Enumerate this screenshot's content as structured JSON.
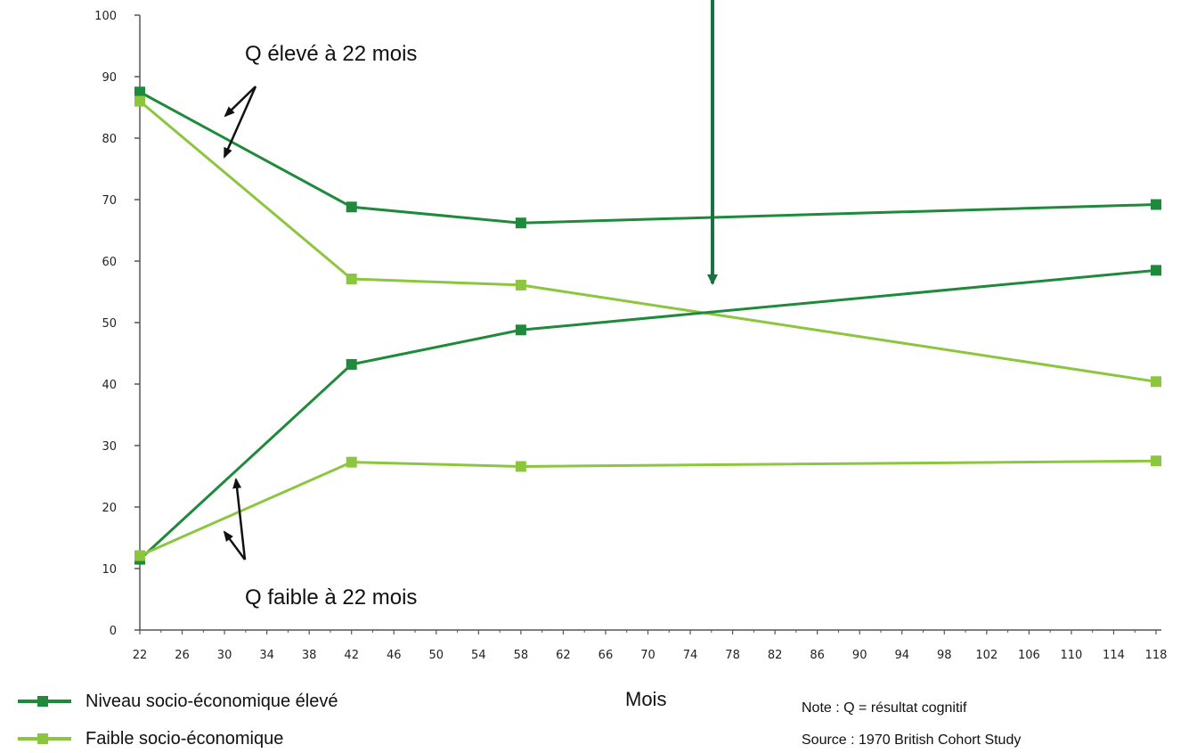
{
  "chart_data": {
    "type": "line",
    "title": "",
    "xlabel": "Mois",
    "ylabel": "",
    "ylim": [
      0,
      100
    ],
    "xlim": [
      22,
      118
    ],
    "y_ticks": [
      0,
      10,
      20,
      30,
      40,
      50,
      60,
      70,
      80,
      90,
      100
    ],
    "x_ticks": [
      22,
      26,
      30,
      34,
      38,
      42,
      46,
      50,
      54,
      58,
      62,
      66,
      70,
      74,
      78,
      82,
      86,
      90,
      94,
      98,
      102,
      106,
      110,
      114,
      118
    ],
    "x": [
      22,
      42,
      58,
      118
    ],
    "series": [
      {
        "name": "Niveau socio-économique élevé",
        "group": "Q élevé à 22 mois",
        "values": [
          87.5,
          68.8,
          66.2,
          69.2
        ]
      },
      {
        "name": "Faible socio-économique",
        "group": "Q élevé à 22 mois",
        "values": [
          86.0,
          57.1,
          56.1,
          40.4
        ]
      },
      {
        "name": "Niveau socio-économique élevé",
        "group": "Q faible à 22 mois",
        "values": [
          11.5,
          43.2,
          48.8,
          58.5
        ]
      },
      {
        "name": "Faible socio-économique",
        "group": "Q faible à 22 mois",
        "values": [
          12.1,
          27.3,
          26.6,
          27.5
        ]
      }
    ],
    "colors": {
      "high": "#1f8a3c",
      "low": "#8cc63f",
      "arrow_green": "#1a7040",
      "arrow_black": "#111111"
    },
    "annotations": [
      {
        "text": "Q élevé à 22 mois"
      },
      {
        "text": "Q faible à 22 mois"
      }
    ],
    "grid": false,
    "legend_position": "bottom-left"
  },
  "legend": [
    {
      "label": "Niveau socio-économique élevé",
      "color": "#1f8a3c"
    },
    {
      "label": "Faible socio-économique",
      "color": "#8cc63f"
    }
  ],
  "note": "Note : Q = résultat cognitif",
  "source": "Source : 1970 British Cohort Study"
}
